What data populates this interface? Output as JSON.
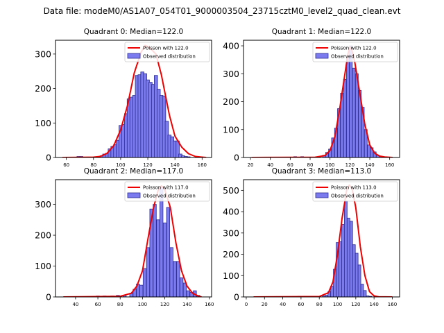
{
  "suptitle": "Data file: modeM0/AS1A07_054T01_9000003504_23715cztM0_level2_quad_clean.evt",
  "colors": {
    "bar_fill": "#7b7bef",
    "bar_edge": "#2b2b8f",
    "poisson_line": "#ee0000",
    "axis": "#000000"
  },
  "chart_data": [
    {
      "type": "bar",
      "title": "Quadrant 0: Median=122.0",
      "xlim": [
        52,
        167
      ],
      "ylim": [
        0,
        340
      ],
      "xticks": [
        60,
        80,
        100,
        120,
        140,
        160
      ],
      "yticks": [
        0,
        100,
        200,
        300
      ],
      "legend": {
        "position": "top-right",
        "line_label": "Poisson with 122.0",
        "bar_label": "Observed distribution"
      },
      "bin_width": 2.4,
      "bars": [
        [
          69,
          3
        ],
        [
          71,
          3
        ],
        [
          86,
          5
        ],
        [
          88,
          10
        ],
        [
          90,
          12
        ],
        [
          92,
          25
        ],
        [
          94,
          32
        ],
        [
          96,
          38
        ],
        [
          98,
          50
        ],
        [
          100,
          93
        ],
        [
          102,
          96
        ],
        [
          104,
          127
        ],
        [
          106,
          170
        ],
        [
          108,
          175
        ],
        [
          110,
          180
        ],
        [
          112,
          238
        ],
        [
          114,
          240
        ],
        [
          116,
          248
        ],
        [
          118,
          243
        ],
        [
          120,
          225
        ],
        [
          122,
          218
        ],
        [
          124,
          212
        ],
        [
          126,
          238
        ],
        [
          128,
          198
        ],
        [
          130,
          180
        ],
        [
          132,
          178
        ],
        [
          134,
          105
        ],
        [
          136,
          65
        ],
        [
          138,
          60
        ],
        [
          140,
          48
        ],
        [
          142,
          48
        ],
        [
          144,
          10
        ],
        [
          146,
          5
        ],
        [
          148,
          3
        ],
        [
          150,
          2
        ]
      ],
      "poisson": [
        [
          57,
          0
        ],
        [
          80,
          1
        ],
        [
          85,
          3
        ],
        [
          90,
          12
        ],
        [
          95,
          35
        ],
        [
          100,
          80
        ],
        [
          105,
          150
        ],
        [
          110,
          245
        ],
        [
          115,
          305
        ],
        [
          118,
          325
        ],
        [
          120,
          322
        ],
        [
          123,
          312
        ],
        [
          126,
          300
        ],
        [
          130,
          240
        ],
        [
          133,
          180
        ],
        [
          136,
          122
        ],
        [
          140,
          62
        ],
        [
          145,
          30
        ],
        [
          150,
          11
        ],
        [
          155,
          3
        ],
        [
          160,
          1
        ],
        [
          163,
          0
        ]
      ]
    },
    {
      "type": "bar",
      "title": "Quadrant 1: Median=122.0",
      "xlim": [
        13,
        170
      ],
      "ylim": [
        0,
        420
      ],
      "xticks": [
        20,
        40,
        60,
        80,
        100,
        120,
        140,
        160
      ],
      "yticks": [
        0,
        100,
        200,
        300,
        400
      ],
      "legend": {
        "position": "top-right",
        "line_label": "Poisson with 122.0",
        "bar_label": "Observed distribution"
      },
      "bin_width": 2.8,
      "bars": [
        [
          65,
          3
        ],
        [
          72,
          3
        ],
        [
          89,
          3
        ],
        [
          94,
          8
        ],
        [
          97,
          18
        ],
        [
          100,
          30
        ],
        [
          103,
          70
        ],
        [
          106,
          105
        ],
        [
          109,
          175
        ],
        [
          112,
          230
        ],
        [
          115,
          280
        ],
        [
          118,
          365
        ],
        [
          121,
          400
        ],
        [
          124,
          320
        ],
        [
          127,
          300
        ],
        [
          130,
          240
        ],
        [
          133,
          180
        ],
        [
          136,
          100
        ],
        [
          139,
          45
        ],
        [
          142,
          35
        ],
        [
          145,
          20
        ],
        [
          148,
          8
        ],
        [
          151,
          4
        ]
      ],
      "poisson": [
        [
          21,
          0
        ],
        [
          85,
          1
        ],
        [
          95,
          7
        ],
        [
          100,
          25
        ],
        [
          105,
          75
        ],
        [
          110,
          180
        ],
        [
          115,
          300
        ],
        [
          118,
          370
        ],
        [
          120,
          395
        ],
        [
          122,
          385
        ],
        [
          125,
          340
        ],
        [
          130,
          230
        ],
        [
          135,
          120
        ],
        [
          140,
          45
        ],
        [
          145,
          15
        ],
        [
          150,
          5
        ],
        [
          155,
          2
        ],
        [
          163,
          0
        ]
      ]
    },
    {
      "type": "bar",
      "title": "Quadrant 2: Median=117.0",
      "xlim": [
        22,
        162
      ],
      "ylim": [
        0,
        380
      ],
      "xticks": [
        40,
        60,
        80,
        100,
        120,
        140,
        160
      ],
      "yticks": [
        0,
        100,
        200,
        300
      ],
      "legend": {
        "position": "top-right",
        "line_label": "Poisson with 117.0",
        "bar_label": "Observed distribution"
      },
      "bin_width": 2.8,
      "bars": [
        [
          60,
          3
        ],
        [
          66,
          3
        ],
        [
          73,
          3
        ],
        [
          78,
          5
        ],
        [
          84,
          5
        ],
        [
          90,
          12
        ],
        [
          93,
          25
        ],
        [
          96,
          42
        ],
        [
          99,
          38
        ],
        [
          102,
          92
        ],
        [
          105,
          160
        ],
        [
          108,
          285
        ],
        [
          111,
          300
        ],
        [
          114,
          250
        ],
        [
          117,
          355
        ],
        [
          120,
          240
        ],
        [
          123,
          290
        ],
        [
          126,
          160
        ],
        [
          129,
          115
        ],
        [
          132,
          115
        ],
        [
          135,
          62
        ],
        [
          138,
          45
        ],
        [
          141,
          20
        ],
        [
          144,
          15
        ],
        [
          147,
          20
        ],
        [
          150,
          5
        ]
      ],
      "poisson": [
        [
          29,
          0
        ],
        [
          80,
          2
        ],
        [
          90,
          12
        ],
        [
          95,
          35
        ],
        [
          100,
          85
        ],
        [
          105,
          190
        ],
        [
          110,
          290
        ],
        [
          114,
          345
        ],
        [
          117,
          360
        ],
        [
          120,
          348
        ],
        [
          125,
          290
        ],
        [
          130,
          175
        ],
        [
          135,
          85
        ],
        [
          140,
          35
        ],
        [
          145,
          12
        ],
        [
          150,
          3
        ],
        [
          153,
          0
        ]
      ]
    },
    {
      "type": "bar",
      "title": "Quadrant 3: Median=113.0",
      "xlim": [
        -3,
        168
      ],
      "ylim": [
        0,
        550
      ],
      "xticks": [
        0,
        20,
        40,
        60,
        80,
        100,
        120,
        140,
        160
      ],
      "yticks": [
        0,
        100,
        200,
        300,
        400,
        500
      ],
      "legend": {
        "position": "top-right",
        "line_label": "Poisson with 113.0",
        "bar_label": "Observed distribution"
      },
      "bin_width": 3.0,
      "bars": [
        [
          58,
          3
        ],
        [
          85,
          5
        ],
        [
          88,
          8
        ],
        [
          91,
          25
        ],
        [
          94,
          50
        ],
        [
          97,
          130
        ],
        [
          100,
          255
        ],
        [
          103,
          260
        ],
        [
          106,
          340
        ],
        [
          109,
          450
        ],
        [
          112,
          370
        ],
        [
          115,
          355
        ],
        [
          118,
          245
        ],
        [
          121,
          205
        ],
        [
          124,
          150
        ],
        [
          127,
          60
        ],
        [
          130,
          30
        ],
        [
          133,
          5
        ],
        [
          136,
          3
        ]
      ],
      "poisson": [
        [
          8,
          0
        ],
        [
          80,
          2
        ],
        [
          90,
          20
        ],
        [
          95,
          70
        ],
        [
          100,
          200
        ],
        [
          105,
          370
        ],
        [
          110,
          500
        ],
        [
          113,
          525
        ],
        [
          116,
          505
        ],
        [
          120,
          420
        ],
        [
          125,
          235
        ],
        [
          130,
          100
        ],
        [
          135,
          25
        ],
        [
          140,
          5
        ],
        [
          145,
          1
        ],
        [
          160,
          0
        ]
      ]
    }
  ]
}
